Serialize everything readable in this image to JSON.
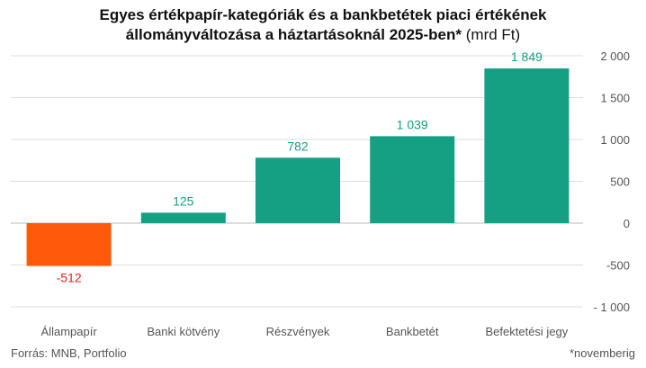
{
  "title": {
    "line1": "Egyes értékpapír-kategóriák és a bankbetétek piaci értékének",
    "line2_bold": "állományváltozása a háztartásoknál 2025-ben*",
    "line2_unit": " (mrd Ft)"
  },
  "source": "Forrás: MNB, Portfolio",
  "footnote": "*novemberig",
  "colors": {
    "positive": "#14a083",
    "negative": "#ff5a0a",
    "negative_label": "#e0211d",
    "positive_label": "#14a083",
    "grid": "#dddddd",
    "axis_text": "#555555"
  },
  "chart_data": {
    "type": "bar",
    "categories": [
      "Állampapír",
      "Banki kötvény",
      "Részvények",
      "Bankbetét",
      "Befektetési jegy"
    ],
    "values": [
      -512,
      125,
      782,
      1039,
      1849
    ],
    "value_labels": [
      "-512",
      "125",
      "782",
      "1 039",
      "1 849"
    ],
    "ylim": [
      -1000,
      2000
    ],
    "yticks": [
      2000,
      1500,
      1000,
      500,
      0,
      -500,
      -1000
    ],
    "ytick_labels": [
      "2 000",
      "1 500",
      "1 000",
      "500",
      "0",
      "-500",
      "- 1 000"
    ],
    "y_axis_position": "right",
    "grid": true
  }
}
